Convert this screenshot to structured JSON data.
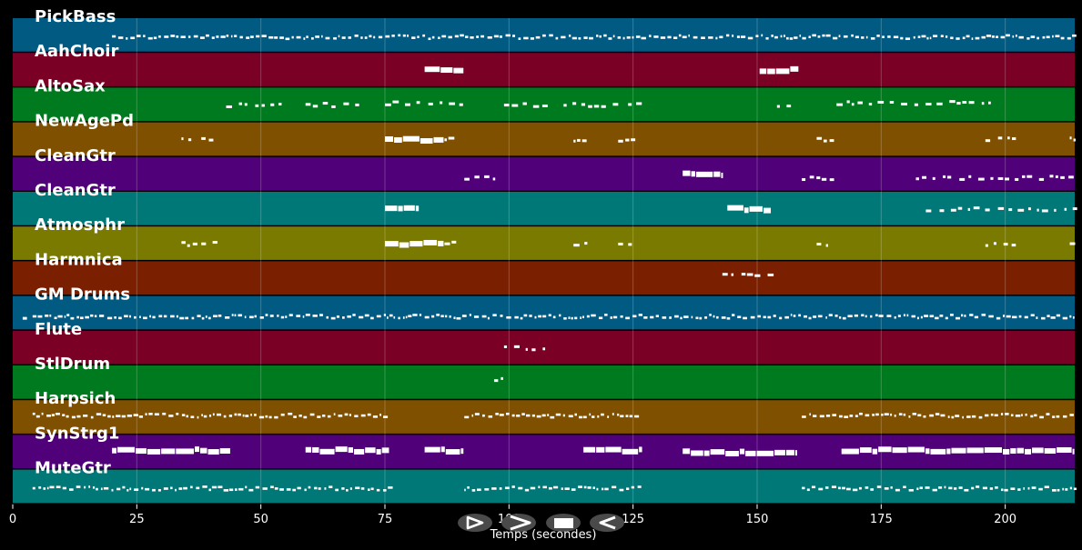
{
  "chart_data": {
    "type": "piano-roll",
    "xlabel": "Temps (secondes)",
    "xlim": [
      0,
      214
    ],
    "xticks": [
      0,
      25,
      50,
      75,
      100,
      125,
      150,
      175,
      200
    ],
    "grid": true,
    "tracks": [
      {
        "name": "PickBass",
        "color": "#005a82",
        "notes": [
          [
            20,
            214,
            0.55,
            "dense"
          ]
        ]
      },
      {
        "name": "AahChoir",
        "color": "#7a0026",
        "notes": [
          [
            83,
            91,
            0.5,
            "block"
          ],
          [
            150.5,
            158.5,
            0.5,
            "block"
          ]
        ]
      },
      {
        "name": "AltoSax",
        "color": "#007a1e",
        "notes": [
          [
            43,
            55,
            0.5,
            "sparse"
          ],
          [
            59,
            71,
            0.5,
            "sparse"
          ],
          [
            75,
            91,
            0.45,
            "sparse"
          ],
          [
            99,
            107,
            0.5,
            "sparse"
          ],
          [
            111,
            121,
            0.5,
            "sparse"
          ],
          [
            124,
            127,
            0.5,
            "sparse"
          ],
          [
            154,
            157,
            0.5,
            "sparse"
          ],
          [
            166,
            177,
            0.45,
            "sparse"
          ],
          [
            179,
            197,
            0.45,
            "sparse"
          ]
        ]
      },
      {
        "name": "NewAgePd",
        "color": "#7f5000",
        "notes": [
          [
            34,
            37,
            0.5,
            "sparse"
          ],
          [
            38,
            41,
            0.5,
            "sparse"
          ],
          [
            75,
            87,
            0.5,
            "block"
          ],
          [
            87,
            89,
            0.5,
            "sparse"
          ],
          [
            113,
            116,
            0.5,
            "sparse"
          ],
          [
            122,
            125,
            0.5,
            "sparse"
          ],
          [
            162,
            165,
            0.5,
            "sparse"
          ],
          [
            196,
            202,
            0.5,
            "sparse"
          ],
          [
            213,
            214,
            0.5,
            "sparse"
          ]
        ]
      },
      {
        "name": "CleanGtr",
        "color": "#500078",
        "notes": [
          [
            91,
            94,
            0.6,
            "sparse"
          ],
          [
            95,
            97,
            0.6,
            "sparse"
          ],
          [
            135,
            143,
            0.5,
            "block"
          ],
          [
            159,
            162,
            0.6,
            "sparse"
          ],
          [
            163,
            165,
            0.6,
            "sparse"
          ],
          [
            182,
            213,
            0.6,
            "sparse"
          ]
        ]
      },
      {
        "name": "CleanGtr",
        "color": "#007878",
        "notes": [
          [
            75,
            82,
            0.5,
            "block"
          ],
          [
            144,
            153,
            0.5,
            "block"
          ],
          [
            184,
            214,
            0.5,
            "sparse"
          ]
        ]
      },
      {
        "name": "Atmosphr",
        "color": "#7a7a00",
        "notes": [
          [
            34,
            37,
            0.5,
            "sparse"
          ],
          [
            38,
            41,
            0.5,
            "sparse"
          ],
          [
            75,
            87,
            0.5,
            "block"
          ],
          [
            87,
            89,
            0.5,
            "sparse"
          ],
          [
            113,
            116,
            0.5,
            "sparse"
          ],
          [
            122,
            125,
            0.5,
            "sparse"
          ],
          [
            162,
            165,
            0.5,
            "sparse"
          ],
          [
            196,
            202,
            0.5,
            "sparse"
          ],
          [
            213,
            214,
            0.5,
            "sparse"
          ]
        ]
      },
      {
        "name": "Harmnica",
        "color": "#7a2000",
        "notes": [
          [
            143,
            153,
            0.4,
            "sparse"
          ]
        ]
      },
      {
        "name": "GM Drums",
        "color": "#005a82",
        "notes": [
          [
            2,
            3,
            0.6,
            "sparse"
          ],
          [
            4,
            214,
            0.6,
            "dense"
          ]
        ]
      },
      {
        "name": "Flute",
        "color": "#7a0026",
        "notes": [
          [
            99,
            107,
            0.5,
            "sparse"
          ]
        ]
      },
      {
        "name": "StlDrum",
        "color": "#007a1e",
        "notes": [
          [
            97,
            100,
            0.4,
            "sparse"
          ]
        ]
      },
      {
        "name": "Harpsich",
        "color": "#7f5000",
        "notes": [
          [
            4,
            75,
            0.45,
            "dense"
          ],
          [
            91,
            126,
            0.45,
            "dense"
          ],
          [
            159,
            214,
            0.45,
            "dense"
          ]
        ]
      },
      {
        "name": "SynStrg1",
        "color": "#500078",
        "notes": [
          [
            20,
            44,
            0.45,
            "block"
          ],
          [
            59,
            76,
            0.45,
            "block"
          ],
          [
            83,
            91,
            0.45,
            "block"
          ],
          [
            115,
            127,
            0.45,
            "block"
          ],
          [
            135,
            158,
            0.5,
            "block"
          ],
          [
            167,
            214,
            0.45,
            "block"
          ]
        ]
      },
      {
        "name": "MuteGtr",
        "color": "#007878",
        "notes": [
          [
            4,
            76,
            0.55,
            "dense"
          ],
          [
            91,
            126,
            0.55,
            "dense"
          ],
          [
            159,
            214,
            0.55,
            "dense"
          ]
        ]
      }
    ]
  },
  "controls": [
    {
      "name": "play-button",
      "icon": "play-icon"
    },
    {
      "name": "fast-forward-button",
      "icon": "fast-forward-icon"
    },
    {
      "name": "stop-button",
      "icon": "stop-icon"
    },
    {
      "name": "rewind-button",
      "icon": "rewind-icon"
    }
  ]
}
